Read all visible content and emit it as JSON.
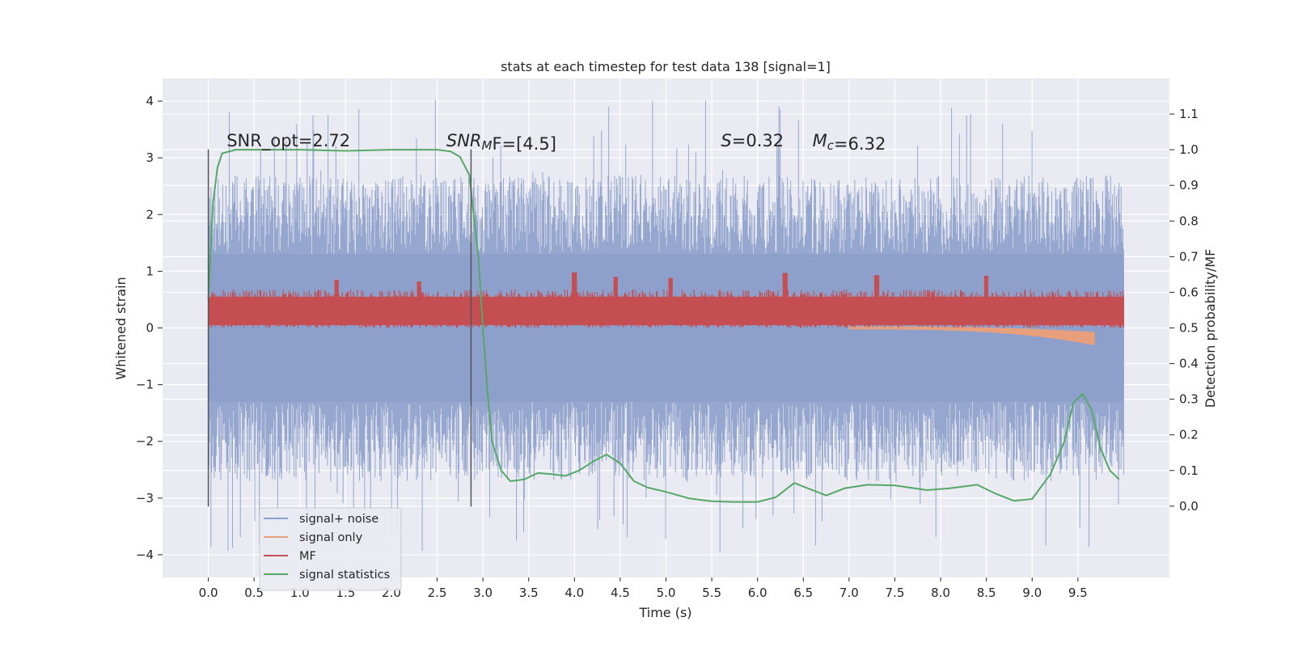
{
  "chart_data": {
    "type": "line",
    "title": "stats at each timestep for test data 138 [signal=1]",
    "xlabel": "Time (s)",
    "ylabel_left": "Whitened strain",
    "ylabel_right": "Detection probability/MF",
    "xlim": [
      -0.5,
      10.5
    ],
    "ylim_left": [
      -4.4,
      4.4
    ],
    "ylim_right": [
      -0.2,
      1.2
    ],
    "x_ticks": [
      0.0,
      0.5,
      1.0,
      1.5,
      2.0,
      2.5,
      3.0,
      3.5,
      4.0,
      4.5,
      5.0,
      5.5,
      6.0,
      6.5,
      7.0,
      7.5,
      8.0,
      8.5,
      9.0,
      9.5
    ],
    "x_tick_labels": [
      "0.0",
      "0.5",
      "1.0",
      "1.5",
      "2.0",
      "2.5",
      "3.0",
      "3.5",
      "4.0",
      "4.5",
      "5.0",
      "5.5",
      "6.0",
      "6.5",
      "7.0",
      "7.5",
      "8.0",
      "8.5",
      "9.0",
      "9.5"
    ],
    "y_left_ticks": [
      4,
      3,
      2,
      1,
      0,
      -1,
      -2,
      -3,
      -4
    ],
    "y_left_tick_labels": [
      "4",
      "3",
      "2",
      "1",
      "0",
      "−1",
      "−2",
      "−3",
      "−4"
    ],
    "y_right_ticks": [
      1.1,
      1.0,
      0.9,
      0.8,
      0.7,
      0.6,
      0.5,
      0.4,
      0.3,
      0.2,
      0.1,
      0.0
    ],
    "y_right_tick_labels": [
      "1.1",
      "1.0",
      "0.9",
      "0.8",
      "0.7",
      "0.6",
      "0.5",
      "0.4",
      "0.3",
      "0.2",
      "0.1",
      "0.0"
    ],
    "grid": true,
    "legend_position": "lower-left",
    "annotations": [
      {
        "id": "snr-opt",
        "x": 0.2,
        "text_parts": [
          {
            "t": "SNR_opt=2.72",
            "i": false
          }
        ]
      },
      {
        "id": "snr-mf",
        "x": 2.6,
        "text_parts": [
          {
            "t": "SNR",
            "i": true
          },
          {
            "t": "M",
            "i": true,
            "sub": true
          },
          {
            "t": "F=[4.5]",
            "i": false
          }
        ]
      },
      {
        "id": "s-value",
        "x": 5.6,
        "text_parts": [
          {
            "t": "S",
            "i": true
          },
          {
            "t": "=0.32",
            "i": false
          }
        ]
      },
      {
        "id": "mc-value",
        "x": 6.6,
        "text_parts": [
          {
            "t": "M",
            "i": true
          },
          {
            "t": "c",
            "i": true,
            "sub": true
          },
          {
            "t": "=6.32",
            "i": false
          }
        ]
      }
    ],
    "annotation_y": 3.2,
    "vertical_markers": [
      {
        "x": 0.0,
        "ymin": -3.15,
        "ymax": 3.15
      },
      {
        "x": 2.87,
        "ymin": -3.15,
        "ymax": 3.15
      }
    ],
    "series": [
      {
        "name": "signal+ noise",
        "axis": "left",
        "color": "#8da0cb",
        "style": "noise",
        "x_range": [
          0.0,
          10.0
        ],
        "band": [
          -1.3,
          1.3
        ],
        "peak_max": 4.05,
        "peak_min": -4.0
      },
      {
        "name": "signal only",
        "axis": "left",
        "color": "#e8a07c",
        "style": "chirp",
        "x_range": [
          7.0,
          9.68
        ],
        "end_value": -0.28
      },
      {
        "name": "MF",
        "axis": "left",
        "color": "#c44e52",
        "style": "mf",
        "x_range": [
          0.0,
          10.0
        ],
        "band": [
          0.05,
          0.55
        ],
        "peaks": [
          [
            1.4,
            0.85
          ],
          [
            2.3,
            0.82
          ],
          [
            4.0,
            0.98
          ],
          [
            4.45,
            0.9
          ],
          [
            5.05,
            0.88
          ],
          [
            6.3,
            0.97
          ],
          [
            7.3,
            0.93
          ],
          [
            8.5,
            0.92
          ]
        ]
      },
      {
        "name": "signal statistics",
        "axis": "right",
        "color": "#55a868",
        "style": "line",
        "points": [
          [
            0.0,
            0.58
          ],
          [
            0.05,
            0.85
          ],
          [
            0.1,
            0.95
          ],
          [
            0.15,
            0.99
          ],
          [
            0.3,
            1.0
          ],
          [
            0.7,
            1.0
          ],
          [
            1.0,
            1.0
          ],
          [
            1.5,
            0.997
          ],
          [
            2.0,
            1.0
          ],
          [
            2.5,
            1.0
          ],
          [
            2.65,
            0.995
          ],
          [
            2.75,
            0.98
          ],
          [
            2.85,
            0.93
          ],
          [
            2.95,
            0.7
          ],
          [
            3.0,
            0.5
          ],
          [
            3.05,
            0.32
          ],
          [
            3.1,
            0.18
          ],
          [
            3.2,
            0.1
          ],
          [
            3.3,
            0.07
          ],
          [
            3.45,
            0.075
          ],
          [
            3.6,
            0.093
          ],
          [
            3.75,
            0.09
          ],
          [
            3.9,
            0.085
          ],
          [
            4.05,
            0.1
          ],
          [
            4.2,
            0.125
          ],
          [
            4.35,
            0.145
          ],
          [
            4.5,
            0.12
          ],
          [
            4.65,
            0.07
          ],
          [
            4.8,
            0.052
          ],
          [
            5.0,
            0.04
          ],
          [
            5.25,
            0.022
          ],
          [
            5.5,
            0.014
          ],
          [
            5.75,
            0.012
          ],
          [
            6.0,
            0.012
          ],
          [
            6.2,
            0.025
          ],
          [
            6.4,
            0.065
          ],
          [
            6.55,
            0.05
          ],
          [
            6.75,
            0.03
          ],
          [
            6.95,
            0.05
          ],
          [
            7.2,
            0.06
          ],
          [
            7.5,
            0.058
          ],
          [
            7.85,
            0.045
          ],
          [
            8.1,
            0.05
          ],
          [
            8.4,
            0.06
          ],
          [
            8.6,
            0.035
          ],
          [
            8.8,
            0.015
          ],
          [
            9.0,
            0.02
          ],
          [
            9.2,
            0.09
          ],
          [
            9.35,
            0.18
          ],
          [
            9.45,
            0.29
          ],
          [
            9.55,
            0.315
          ],
          [
            9.65,
            0.27
          ],
          [
            9.75,
            0.16
          ],
          [
            9.85,
            0.1
          ],
          [
            9.95,
            0.075
          ]
        ]
      }
    ]
  }
}
